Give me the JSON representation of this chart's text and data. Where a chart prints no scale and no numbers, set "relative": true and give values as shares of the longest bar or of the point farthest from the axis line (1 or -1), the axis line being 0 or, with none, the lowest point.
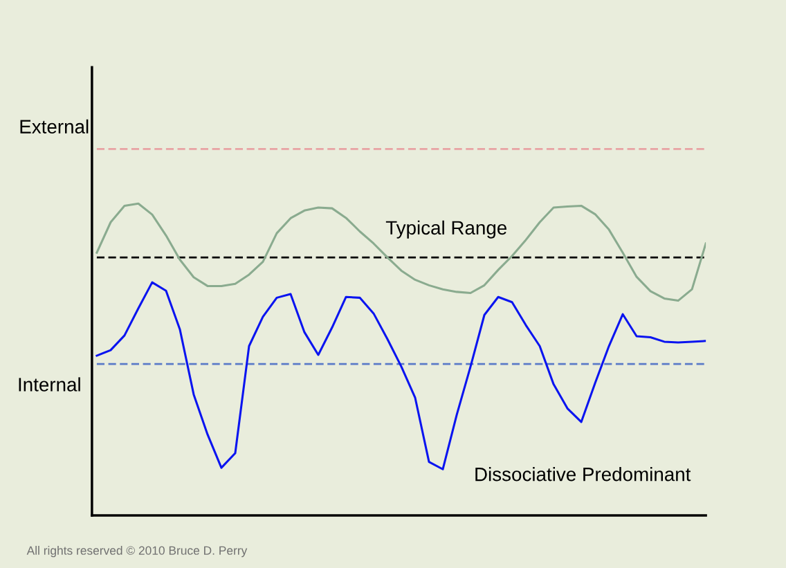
{
  "chart_data": {
    "type": "line",
    "relative": true,
    "categories": [
      null,
      null,
      null,
      null,
      null,
      null,
      null,
      null,
      null,
      null,
      null,
      null,
      null,
      null,
      null,
      null,
      null,
      null,
      null,
      null,
      null,
      null,
      null,
      null,
      null,
      null,
      null,
      null,
      null,
      null,
      null,
      null,
      null,
      null,
      null,
      null,
      null,
      null,
      null,
      null,
      null,
      null,
      null,
      null,
      null
    ],
    "annotations": [
      "External",
      "Internal",
      "Typical Range",
      "Dissociative Predominant",
      "All rights reserved © 2010 Bruce D. Perry"
    ],
    "series": [
      {
        "color": "#e8a3a3",
        "line_style": "dashed",
        "values": [
          1,
          1,
          1,
          1,
          1,
          1,
          1,
          1,
          1,
          1,
          1,
          1,
          1,
          1,
          1,
          1,
          1,
          1,
          1,
          1,
          1,
          1,
          1,
          1,
          1,
          1,
          1,
          1,
          1,
          1,
          1,
          1,
          1,
          1,
          1,
          1,
          1,
          1,
          1,
          1,
          1,
          1,
          1,
          1,
          1
        ]
      },
      {
        "color": "#000000",
        "line_style": "dashed",
        "values": [
          0.704,
          0.704,
          0.704,
          0.704,
          0.704,
          0.704,
          0.704,
          0.704,
          0.704,
          0.704,
          0.704,
          0.704,
          0.704,
          0.704,
          0.704,
          0.704,
          0.704,
          0.704,
          0.704,
          0.704,
          0.704,
          0.704,
          0.704,
          0.704,
          0.704,
          0.704,
          0.704,
          0.704,
          0.704,
          0.704,
          0.704,
          0.704,
          0.704,
          0.704,
          0.704,
          0.704,
          0.704,
          0.704,
          0.704,
          0.704,
          0.704,
          0.704,
          0.704,
          0.704,
          0.704
        ]
      },
      {
        "color": "#5b7bc8",
        "line_style": "dashed",
        "values": [
          0.413,
          0.413,
          0.413,
          0.413,
          0.413,
          0.413,
          0.413,
          0.413,
          0.413,
          0.413,
          0.413,
          0.413,
          0.413,
          0.413,
          0.413,
          0.413,
          0.413,
          0.413,
          0.413,
          0.413,
          0.413,
          0.413,
          0.413,
          0.413,
          0.413,
          0.413,
          0.413,
          0.413,
          0.413,
          0.413,
          0.413,
          0.413,
          0.413,
          0.413,
          0.413,
          0.413,
          0.413,
          0.413,
          0.413,
          0.413,
          0.413,
          0.413,
          0.413,
          0.413,
          0.413
        ]
      },
      {
        "color": "#8aab8f",
        "line_style": "solid",
        "values": [
          0.717,
          0.8,
          0.845,
          0.851,
          0.821,
          0.764,
          0.698,
          0.65,
          0.626,
          0.626,
          0.632,
          0.657,
          0.692,
          0.77,
          0.811,
          0.832,
          0.84,
          0.838,
          0.812,
          0.775,
          0.742,
          0.704,
          0.668,
          0.643,
          0.628,
          0.617,
          0.61,
          0.607,
          0.628,
          0.67,
          0.708,
          0.752,
          0.8,
          0.84,
          0.843,
          0.845,
          0.822,
          0.78,
          0.717,
          0.651,
          0.612,
          0.592,
          0.586,
          0.617,
          0.742
        ]
      },
      {
        "color": "#0a14f0",
        "line_style": "solid",
        "values": [
          0.436,
          0.451,
          0.491,
          0.565,
          0.636,
          0.613,
          0.508,
          0.33,
          0.221,
          0.13,
          0.17,
          0.462,
          0.542,
          0.594,
          0.604,
          0.5,
          0.438,
          0.513,
          0.596,
          0.594,
          0.551,
          0.481,
          0.406,
          0.321,
          0.146,
          0.126,
          0.274,
          0.406,
          0.547,
          0.596,
          0.582,
          0.519,
          0.462,
          0.358,
          0.292,
          0.255,
          0.361,
          0.462,
          0.549,
          0.489,
          0.486,
          0.474,
          0.472,
          0.474,
          0.476
        ]
      }
    ]
  }
}
